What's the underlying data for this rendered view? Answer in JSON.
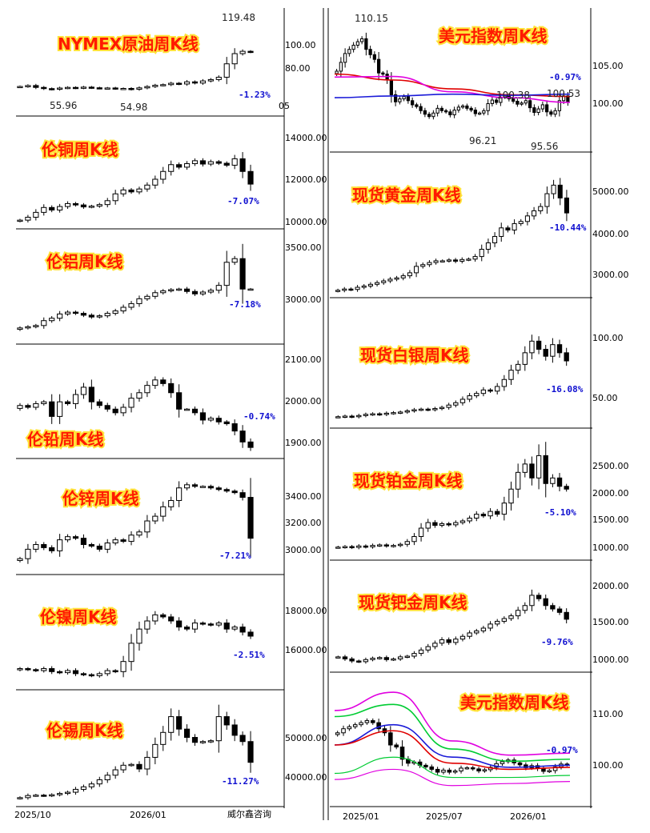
{
  "source": "威尔鑫咨询",
  "colors": {
    "up_fill": "#ffffff",
    "down_fill": "#000000",
    "candle_stroke": "#000000",
    "title_fill": "#ff1a00",
    "title_glow": "#ffe23a",
    "pct_text": "#1010d0",
    "ma_red": "#e00000",
    "ma_magenta": "#e000e0",
    "ma_blue": "#1a1ad8",
    "band_green": "#00cc33"
  },
  "left_xaxis": [
    "2025/10",
    "2026/01"
  ],
  "right_xaxis": [
    "2025/01",
    "2025/07",
    "2026/01"
  ],
  "chart_data": [
    {
      "id": "oil",
      "type": "candlestick",
      "title": "NYMEX原油周K线",
      "change": "-1.23%",
      "yticks": [
        "100.00",
        "80.00"
      ],
      "yrange": [
        45,
        128
      ],
      "cut_tick": "05",
      "annotations": [
        {
          "text": "119.48",
          "value": 119.48
        },
        {
          "text": "55.96",
          "value": 55.96
        },
        {
          "text": "54.98",
          "value": 54.98
        }
      ],
      "closes": [
        60.5,
        61.5,
        59.5,
        58.2,
        57.5,
        58.8,
        59.5,
        58.9,
        59.8,
        59.1,
        58.6,
        58.9,
        58.2,
        58.4,
        57.5,
        59.0,
        60.4,
        61.8,
        62.5,
        64.0,
        63.2,
        65.5,
        64.2,
        66.5,
        68.0,
        70.5,
        85.0,
        96.0,
        98.5,
        97.8
      ]
    },
    {
      "id": "copper",
      "type": "candlestick",
      "title": "伦铜周K线",
      "change": "-7.07%",
      "yticks": [
        "14000.00",
        "12000.00",
        "10000.00"
      ],
      "yrange": [
        9800,
        14400
      ],
      "closes": [
        10000,
        10150,
        10400,
        10650,
        10520,
        10700,
        10850,
        10780,
        10680,
        10720,
        10800,
        11000,
        11350,
        11550,
        11450,
        11600,
        11800,
        12100,
        12500,
        12850,
        12720,
        12900,
        13050,
        12880,
        13000,
        12920,
        12820,
        13150,
        12500,
        11850
      ]
    },
    {
      "id": "aluminum",
      "type": "candlestick",
      "title": "伦铝周K线",
      "change": "-7.18%",
      "yticks": [
        "3500.00",
        "3000.00"
      ],
      "yrange": [
        2800,
        3550
      ],
      "closes": [
        2880,
        2890,
        2900,
        2940,
        2960,
        2995,
        3010,
        3000,
        2985,
        2970,
        2980,
        3000,
        3020,
        3050,
        3080,
        3120,
        3140,
        3170,
        3185,
        3195,
        3200,
        3180,
        3160,
        3175,
        3190,
        3230,
        3420,
        3450,
        3200,
        3200
      ]
    },
    {
      "id": "lead",
      "type": "candlestick",
      "title": "伦铅周K线",
      "change": "-0.74%",
      "yticks": [
        "2100.00",
        "2000.00",
        "1900.00"
      ],
      "yrange": [
        1880,
        2130
      ],
      "closes": [
        2010,
        2005,
        2015,
        2020,
        1980,
        2020,
        2015,
        2040,
        2060,
        2020,
        2010,
        2000,
        1990,
        2005,
        2030,
        2045,
        2065,
        2080,
        2070,
        2045,
        2000,
        2000,
        1990,
        1970,
        1975,
        1965,
        1960,
        1940,
        1910,
        1895
      ]
    },
    {
      "id": "zinc",
      "type": "candlestick",
      "title": "伦锌周K线",
      "change": "-7.21%",
      "yticks": [
        "3400.00",
        "3200.00",
        "3000.00"
      ],
      "yrange": [
        2880,
        3450
      ],
      "closes": [
        2930,
        2990,
        3020,
        3000,
        2980,
        3050,
        3070,
        3060,
        3020,
        3010,
        2990,
        3030,
        3050,
        3040,
        3080,
        3100,
        3170,
        3200,
        3260,
        3300,
        3380,
        3400,
        3390,
        3390,
        3380,
        3370,
        3360,
        3350,
        3320,
        3060
      ]
    },
    {
      "id": "nickel",
      "type": "candlestick",
      "title": "伦镍周K线",
      "change": "-2.51%",
      "yticks": [
        "18000.00",
        "16000.00"
      ],
      "yrange": [
        14600,
        19100
      ],
      "closes": [
        15250,
        15200,
        15150,
        15250,
        15100,
        15050,
        15150,
        15000,
        14950,
        14900,
        15000,
        15150,
        15100,
        15600,
        16500,
        17200,
        17600,
        17900,
        17800,
        17600,
        17300,
        17200,
        17500,
        17450,
        17400,
        17500,
        17200,
        17300,
        17050,
        16850
      ]
    },
    {
      "id": "tin",
      "type": "candlestick",
      "title": "伦锡周K线",
      "change": "-11.27%",
      "yticks": [
        "50000.00",
        "40000.00"
      ],
      "yrange": [
        32500,
        56000
      ],
      "closes": [
        33500,
        34000,
        34100,
        34000,
        34200,
        34500,
        34800,
        35500,
        36100,
        36800,
        37800,
        38900,
        40200,
        41300,
        41500,
        40400,
        43200,
        46300,
        49200,
        53000,
        50000,
        48000,
        46800,
        47000,
        47200,
        53000,
        51000,
        48500,
        47000,
        42000
      ]
    },
    {
      "id": "dxy",
      "type": "candlestick",
      "title": "美元指数周K线",
      "change": "-0.97%",
      "yticks": [
        "105.00",
        "100.00"
      ],
      "yrange": [
        93.5,
        112.5
      ],
      "annotations": [
        {
          "text": "110.15",
          "value": 110.15
        },
        {
          "text": "96.21",
          "value": 96.21
        },
        {
          "text": "95.56",
          "value": 95.56
        },
        {
          "text": "100.38",
          "value": 100.38
        },
        {
          "text": "100.53",
          "value": 100.53
        }
      ],
      "closes": [
        104.5,
        106.0,
        107.5,
        108.2,
        108.9,
        109.5,
        110.0,
        108.2,
        107.3,
        106.5,
        104.2,
        104.0,
        103.0,
        100.5,
        99.3,
        99.8,
        100.2,
        99.5,
        98.8,
        98.5,
        97.8,
        97.2,
        96.8,
        97.4,
        98.2,
        97.8,
        97.6,
        97.1,
        97.9,
        98.4,
        98.6,
        98.2,
        97.9,
        97.3,
        97.4,
        97.8,
        99.0,
        99.6,
        99.2,
        100.1,
        100.3,
        99.8,
        99.4,
        98.9,
        99.1,
        99.5,
        98.3,
        97.5,
        98.1,
        98.8,
        97.6,
        97.2,
        97.8,
        99.5,
        100.3,
        99.3
      ],
      "series": [
        {
          "name": "",
          "color": "#e00000",
          "values": [
            104,
            103,
            101.5,
            100.5,
            100.2
          ]
        },
        {
          "name": "",
          "color": "#e000e0",
          "values": [
            103.5,
            103.6,
            101,
            100,
            99.2
          ]
        },
        {
          "name": "",
          "color": "#1a1ad8",
          "values": [
            100,
            100.3,
            100.6,
            100.4,
            100.6
          ]
        }
      ]
    },
    {
      "id": "gold",
      "type": "candlestick",
      "title": "现货黄金周K线",
      "change": "-10.44%",
      "yticks": [
        "5000.00",
        "4000.00",
        "3000.00"
      ],
      "yrange": [
        2580,
        5500
      ],
      "closes": [
        2640,
        2670,
        2660,
        2710,
        2740,
        2780,
        2820,
        2860,
        2900,
        2930,
        2980,
        3050,
        3200,
        3240,
        3290,
        3330,
        3330,
        3350,
        3320,
        3360,
        3370,
        3430,
        3600,
        3750,
        3900,
        4100,
        4050,
        4200,
        4250,
        4380,
        4500,
        4600,
        4900,
        5100,
        4800,
        4450
      ]
    },
    {
      "id": "silver",
      "type": "candlestick",
      "title": "现货白银周K线",
      "change": "-16.08%",
      "yticks": [
        "100.00",
        "50.00"
      ],
      "yrange": [
        25,
        120
      ],
      "closes": [
        30,
        30.5,
        30,
        31,
        32,
        32.5,
        32,
        33,
        33.5,
        34,
        35,
        36,
        36.5,
        36,
        37,
        38,
        40,
        42,
        45,
        48,
        50,
        53,
        52,
        56,
        62,
        70,
        75,
        85,
        95,
        88,
        82,
        92,
        85,
        78
      ]
    },
    {
      "id": "platinum",
      "type": "candlestick",
      "title": "现货铂金周K线",
      "change": "-5.10%",
      "yticks": [
        "2500.00",
        "2000.00",
        "1500.00",
        "1000.00"
      ],
      "yrange": [
        870,
        2850
      ],
      "closes": [
        960,
        970,
        955,
        980,
        965,
        990,
        1000,
        980,
        990,
        1010,
        1060,
        1150,
        1300,
        1400,
        1350,
        1380,
        1360,
        1400,
        1430,
        1480,
        1550,
        1520,
        1600,
        1550,
        1750,
        2000,
        2300,
        2450,
        2200,
        2600,
        2100,
        2200,
        2050,
        2000
      ]
    },
    {
      "id": "palladium",
      "type": "candlestick",
      "title": "现货钯金周K线",
      "change": "-9.76%",
      "yticks": [
        "2000.00",
        "1500.00",
        "1000.00"
      ],
      "yrange": [
        870,
        2250
      ],
      "closes": [
        1000,
        970,
        940,
        930,
        960,
        980,
        990,
        960,
        970,
        1000,
        1010,
        1050,
        1100,
        1150,
        1200,
        1250,
        1210,
        1260,
        1300,
        1350,
        1380,
        1420,
        1480,
        1520,
        1560,
        1600,
        1680,
        1750,
        1900,
        1850,
        1750,
        1700,
        1650,
        1550
      ]
    },
    {
      "id": "dxy_bands",
      "type": "candlestick",
      "title": "美元指数周K线",
      "change": "-0.97%",
      "yticks": [
        "110.00",
        "100.00"
      ],
      "yrange": [
        90,
        118
      ],
      "closes": [
        107,
        108,
        108.5,
        109,
        109.5,
        110,
        109.5,
        108,
        107,
        104,
        103.5,
        100.5,
        99.5,
        99.8,
        99,
        98.6,
        98,
        97.3,
        97.8,
        97.3,
        97.6,
        98.3,
        98.4,
        98.1,
        97.6,
        97.9,
        98.5,
        99.4,
        99.9,
        100.3,
        99.6,
        99.1,
        98.4,
        98.9,
        98.2,
        97.5,
        97.7,
        98.6,
        99.3,
        99.1
      ],
      "series": [
        {
          "name": "",
          "color": "#1a1ad8",
          "values": [
            104,
            109,
            101,
            98.5,
            99
          ]
        },
        {
          "name": "",
          "color": "#e00000",
          "values": [
            104,
            107.5,
            99.5,
            98,
            98.5
          ]
        },
        {
          "name": "",
          "color": "#00cc33",
          "values": [
            111,
            114,
            103,
            100,
            100.5
          ]
        },
        {
          "name": "",
          "color": "#e000e0",
          "values": [
            112.5,
            117,
            105,
            101.5,
            102
          ]
        }
      ]
    }
  ]
}
